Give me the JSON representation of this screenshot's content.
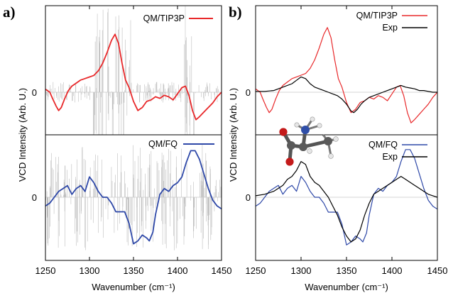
{
  "figure": {
    "panels": [
      {
        "letter": "a)",
        "xlabel": "Wavenumber (cm⁻¹)",
        "ylabel": "VCD Intensity (Arb. U.)"
      },
      {
        "letter": "b)",
        "xlabel": "Wavenumber (cm⁻¹)",
        "ylabel": "VCD Intensity (Arb. U.)"
      }
    ],
    "zero_label": "0",
    "colors": {
      "tip3p": "#e8282a",
      "fq": "#2e48a8",
      "exp": "#000000",
      "sticks": "#a8a8a8",
      "zero_line": "#c8c8c8"
    }
  },
  "chart_data": [
    {
      "panel": "a) top",
      "type": "line",
      "xlim": [
        1250,
        1450
      ],
      "xticks": [
        1250,
        1300,
        1350,
        1400,
        1450
      ],
      "ylim": [
        -2.0,
        4.5
      ],
      "yticks": [
        0
      ],
      "xlabel": "Wavenumber (cm⁻¹)",
      "ylabel": "VCD Intensity (Arb. U.)",
      "sticks": "dense grey stick spectrum of individual snapshot contributions",
      "series": [
        {
          "name": "QM/TIP3P",
          "color": "#e8282a",
          "x": [
            1250,
            1255,
            1258,
            1262,
            1265,
            1268,
            1272,
            1276,
            1280,
            1285,
            1290,
            1295,
            1300,
            1305,
            1310,
            1315,
            1320,
            1325,
            1329,
            1333,
            1337,
            1341,
            1345,
            1350,
            1355,
            1360,
            1365,
            1370,
            1375,
            1380,
            1385,
            1390,
            1395,
            1400,
            1405,
            1409,
            1413,
            1417,
            1421,
            1425,
            1430,
            1435,
            1440,
            1445,
            1450
          ],
          "y": [
            0.2,
            0,
            -0.4,
            -0.9,
            -1.2,
            -1.0,
            -0.4,
            0.1,
            0.4,
            0.6,
            0.8,
            0.9,
            1.0,
            1.1,
            1.4,
            1.9,
            2.6,
            3.4,
            3.8,
            3.2,
            1.9,
            0.8,
            0.3,
            -0.6,
            -1.2,
            -1.0,
            -0.6,
            -0.5,
            -0.3,
            -0.4,
            -0.2,
            -0.3,
            -0.5,
            -0.1,
            0.3,
            0.4,
            -0.2,
            -1.2,
            -1.8,
            -1.6,
            -1.3,
            -1.0,
            -0.7,
            -0.3,
            0
          ]
        }
      ]
    },
    {
      "panel": "a) bottom",
      "type": "line",
      "xlim": [
        1250,
        1450
      ],
      "xticks": [
        1250,
        1300,
        1350,
        1400,
        1450
      ],
      "ylim": [
        -2.0,
        2.4
      ],
      "yticks": [
        0
      ],
      "xlabel": "Wavenumber (cm⁻¹)",
      "ylabel": "VCD Intensity (Arb. U.)",
      "sticks": "dense grey stick spectrum of individual snapshot contributions",
      "series": [
        {
          "name": "QM/FQ",
          "color": "#2e48a8",
          "x": [
            1250,
            1255,
            1260,
            1265,
            1270,
            1275,
            1280,
            1285,
            1290,
            1295,
            1300,
            1305,
            1310,
            1315,
            1320,
            1325,
            1330,
            1335,
            1340,
            1345,
            1350,
            1355,
            1360,
            1365,
            1368,
            1372,
            1375,
            1380,
            1385,
            1390,
            1395,
            1400,
            1405,
            1410,
            1415,
            1420,
            1425,
            1430,
            1435,
            1440,
            1445,
            1450
          ],
          "y": [
            -0.3,
            -0.2,
            0,
            0.2,
            0.3,
            0.4,
            0.1,
            0.3,
            0.4,
            0.2,
            0.7,
            0.5,
            0.2,
            0,
            0,
            -0.2,
            -0.5,
            -0.5,
            -0.5,
            -0.9,
            -1.6,
            -1.5,
            -1.3,
            -1.4,
            -1.5,
            -1.2,
            -0.6,
            0.1,
            0.3,
            0.2,
            0.4,
            0.5,
            0.7,
            1.2,
            1.6,
            1.6,
            1.3,
            0.8,
            0.3,
            -0.1,
            -0.3,
            -0.4
          ]
        }
      ]
    },
    {
      "panel": "b) top",
      "type": "line",
      "xlim": [
        1250,
        1450
      ],
      "xticks": [
        1250,
        1300,
        1350,
        1400,
        1450
      ],
      "ylim": [
        -2.0,
        4.5
      ],
      "yticks": [
        0
      ],
      "xlabel": "Wavenumber (cm⁻¹)",
      "ylabel": "VCD Intensity (Arb. U.)",
      "series": [
        {
          "name": "QM/TIP3P",
          "color": "#e8282a",
          "x": [
            1250,
            1255,
            1258,
            1262,
            1265,
            1268,
            1272,
            1276,
            1280,
            1285,
            1290,
            1295,
            1300,
            1305,
            1310,
            1315,
            1320,
            1325,
            1329,
            1333,
            1337,
            1341,
            1345,
            1350,
            1355,
            1360,
            1365,
            1370,
            1375,
            1380,
            1385,
            1390,
            1395,
            1400,
            1405,
            1409,
            1413,
            1417,
            1421,
            1425,
            1430,
            1435,
            1440,
            1445,
            1450
          ],
          "y": [
            0.2,
            0,
            -0.4,
            -0.9,
            -1.2,
            -1.0,
            -0.4,
            0.1,
            0.4,
            0.6,
            0.8,
            0.9,
            1.0,
            1.1,
            1.4,
            1.9,
            2.6,
            3.4,
            3.8,
            3.2,
            1.9,
            0.8,
            0.3,
            -0.6,
            -1.2,
            -1.0,
            -0.6,
            -0.5,
            -0.3,
            -0.4,
            -0.2,
            -0.3,
            -0.5,
            -0.1,
            0.3,
            0.4,
            -0.2,
            -1.2,
            -1.8,
            -1.6,
            -1.3,
            -1.0,
            -0.7,
            -0.3,
            0
          ]
        },
        {
          "name": "Exp",
          "color": "#000000",
          "x": [
            1250,
            1260,
            1270,
            1280,
            1290,
            1295,
            1300,
            1305,
            1310,
            1315,
            1320,
            1325,
            1330,
            1335,
            1340,
            1345,
            1350,
            1355,
            1358,
            1362,
            1366,
            1370,
            1375,
            1380,
            1385,
            1390,
            1395,
            1400,
            1405,
            1410,
            1415,
            1420,
            1425,
            1430,
            1435,
            1440,
            1445,
            1450
          ],
          "y": [
            0.05,
            0.05,
            0.1,
            0.3,
            0.5,
            0.7,
            0.9,
            0.8,
            0.5,
            0.3,
            0.2,
            0.1,
            0,
            -0.1,
            -0.2,
            -0.4,
            -0.7,
            -1.1,
            -1.2,
            -1.0,
            -0.7,
            -0.5,
            -0.3,
            -0.2,
            -0.1,
            0,
            0.1,
            0.2,
            0.3,
            0.4,
            0.3,
            0.25,
            0.2,
            0.1,
            0.1,
            0.05,
            0,
            0
          ]
        }
      ]
    },
    {
      "panel": "b) bottom",
      "type": "line",
      "xlim": [
        1250,
        1450
      ],
      "xticks": [
        1250,
        1300,
        1350,
        1400,
        1450
      ],
      "ylim": [
        -2.0,
        2.4
      ],
      "yticks": [
        0
      ],
      "xlabel": "Wavenumber (cm⁻¹)",
      "ylabel": "VCD Intensity (Arb. U.)",
      "series": [
        {
          "name": "QM/FQ",
          "color": "#2e48a8",
          "x": [
            1250,
            1255,
            1260,
            1265,
            1270,
            1275,
            1280,
            1285,
            1290,
            1295,
            1300,
            1305,
            1310,
            1315,
            1320,
            1325,
            1330,
            1335,
            1340,
            1345,
            1350,
            1355,
            1360,
            1365,
            1368,
            1372,
            1375,
            1380,
            1385,
            1390,
            1395,
            1400,
            1405,
            1410,
            1415,
            1420,
            1425,
            1430,
            1435,
            1440,
            1445,
            1450
          ],
          "y": [
            -0.3,
            -0.2,
            0,
            0.2,
            0.3,
            0.4,
            0.1,
            0.3,
            0.4,
            0.2,
            0.7,
            0.5,
            0.2,
            0,
            0,
            -0.2,
            -0.5,
            -0.5,
            -0.5,
            -0.9,
            -1.6,
            -1.5,
            -1.3,
            -1.4,
            -1.5,
            -1.2,
            -0.6,
            0.1,
            0.3,
            0.2,
            0.4,
            0.5,
            0.7,
            1.2,
            1.6,
            1.6,
            1.3,
            0.8,
            0.3,
            -0.1,
            -0.3,
            -0.4
          ]
        },
        {
          "name": "Exp",
          "color": "#000000",
          "x": [
            1250,
            1260,
            1270,
            1280,
            1285,
            1290,
            1295,
            1300,
            1305,
            1310,
            1315,
            1320,
            1325,
            1330,
            1335,
            1340,
            1345,
            1350,
            1355,
            1360,
            1365,
            1370,
            1375,
            1380,
            1385,
            1390,
            1395,
            1400,
            1405,
            1410,
            1415,
            1420,
            1425,
            1430,
            1435,
            1440,
            1445,
            1450
          ],
          "y": [
            0.05,
            0.1,
            0.2,
            0.4,
            0.6,
            0.7,
            0.9,
            1.2,
            1.1,
            0.7,
            0.5,
            0.4,
            0.2,
            0,
            -0.3,
            -0.6,
            -1.0,
            -1.3,
            -1.5,
            -1.4,
            -1.1,
            -0.6,
            -0.2,
            0.1,
            0.2,
            0.3,
            0.4,
            0.5,
            0.6,
            0.7,
            0.6,
            0.5,
            0.4,
            0.3,
            0.2,
            0.1,
            0.05,
            0
          ]
        }
      ]
    }
  ]
}
